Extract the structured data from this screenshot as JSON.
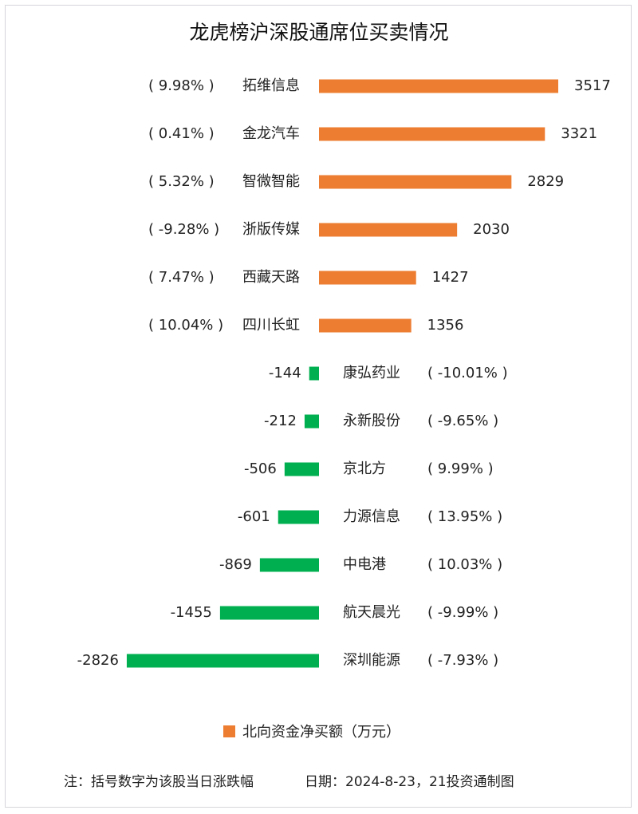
{
  "title": "龙虎榜沪深股通席位买卖情况",
  "chart_data": {
    "type": "bar",
    "orientation": "horizontal",
    "title": "龙虎榜沪深股通席位买卖情况",
    "series": [
      {
        "name": "北向资金净买额（万元）",
        "positive_color": "#ED7D31",
        "negative_color": "#00B050"
      }
    ],
    "rows": [
      {
        "stock": "拓维信息",
        "change": "( 9.98% )",
        "value": 3517,
        "value_label": "3517"
      },
      {
        "stock": "金龙汽车",
        "change": "( 0.41% )",
        "value": 3321,
        "value_label": "3321"
      },
      {
        "stock": "智微智能",
        "change": "( 5.32% )",
        "value": 2829,
        "value_label": "2829"
      },
      {
        "stock": "浙版传媒",
        "change": "( -9.28% )",
        "value": 2030,
        "value_label": "2030"
      },
      {
        "stock": "西藏天路",
        "change": "( 7.47% )",
        "value": 1427,
        "value_label": "1427"
      },
      {
        "stock": "四川长虹",
        "change": "( 10.04% )",
        "value": 1356,
        "value_label": "1356"
      },
      {
        "stock": "康弘药业",
        "change": "( -10.01% )",
        "value": -144,
        "value_label": "-144"
      },
      {
        "stock": "永新股份",
        "change": "( -9.65% )",
        "value": -212,
        "value_label": "-212"
      },
      {
        "stock": "京北方",
        "change": "( 9.99% )",
        "value": -506,
        "value_label": "-506"
      },
      {
        "stock": "力源信息",
        "change": "( 13.95% )",
        "value": -601,
        "value_label": "-601"
      },
      {
        "stock": "中电港",
        "change": "( 10.03% )",
        "value": -869,
        "value_label": "-869"
      },
      {
        "stock": "航天晨光",
        "change": "( -9.99% )",
        "value": -1455,
        "value_label": "-1455"
      },
      {
        "stock": "深圳能源",
        "change": "( -7.93% )",
        "value": -2826,
        "value_label": "-2826"
      }
    ],
    "legend_position": "bottom",
    "grid": false
  },
  "legend_label": "北向资金净买额（万元）",
  "footnote": {
    "note": "注：括号数字为该股当日涨跌幅",
    "source": "日期：2024-8-23，21投资通制图"
  }
}
